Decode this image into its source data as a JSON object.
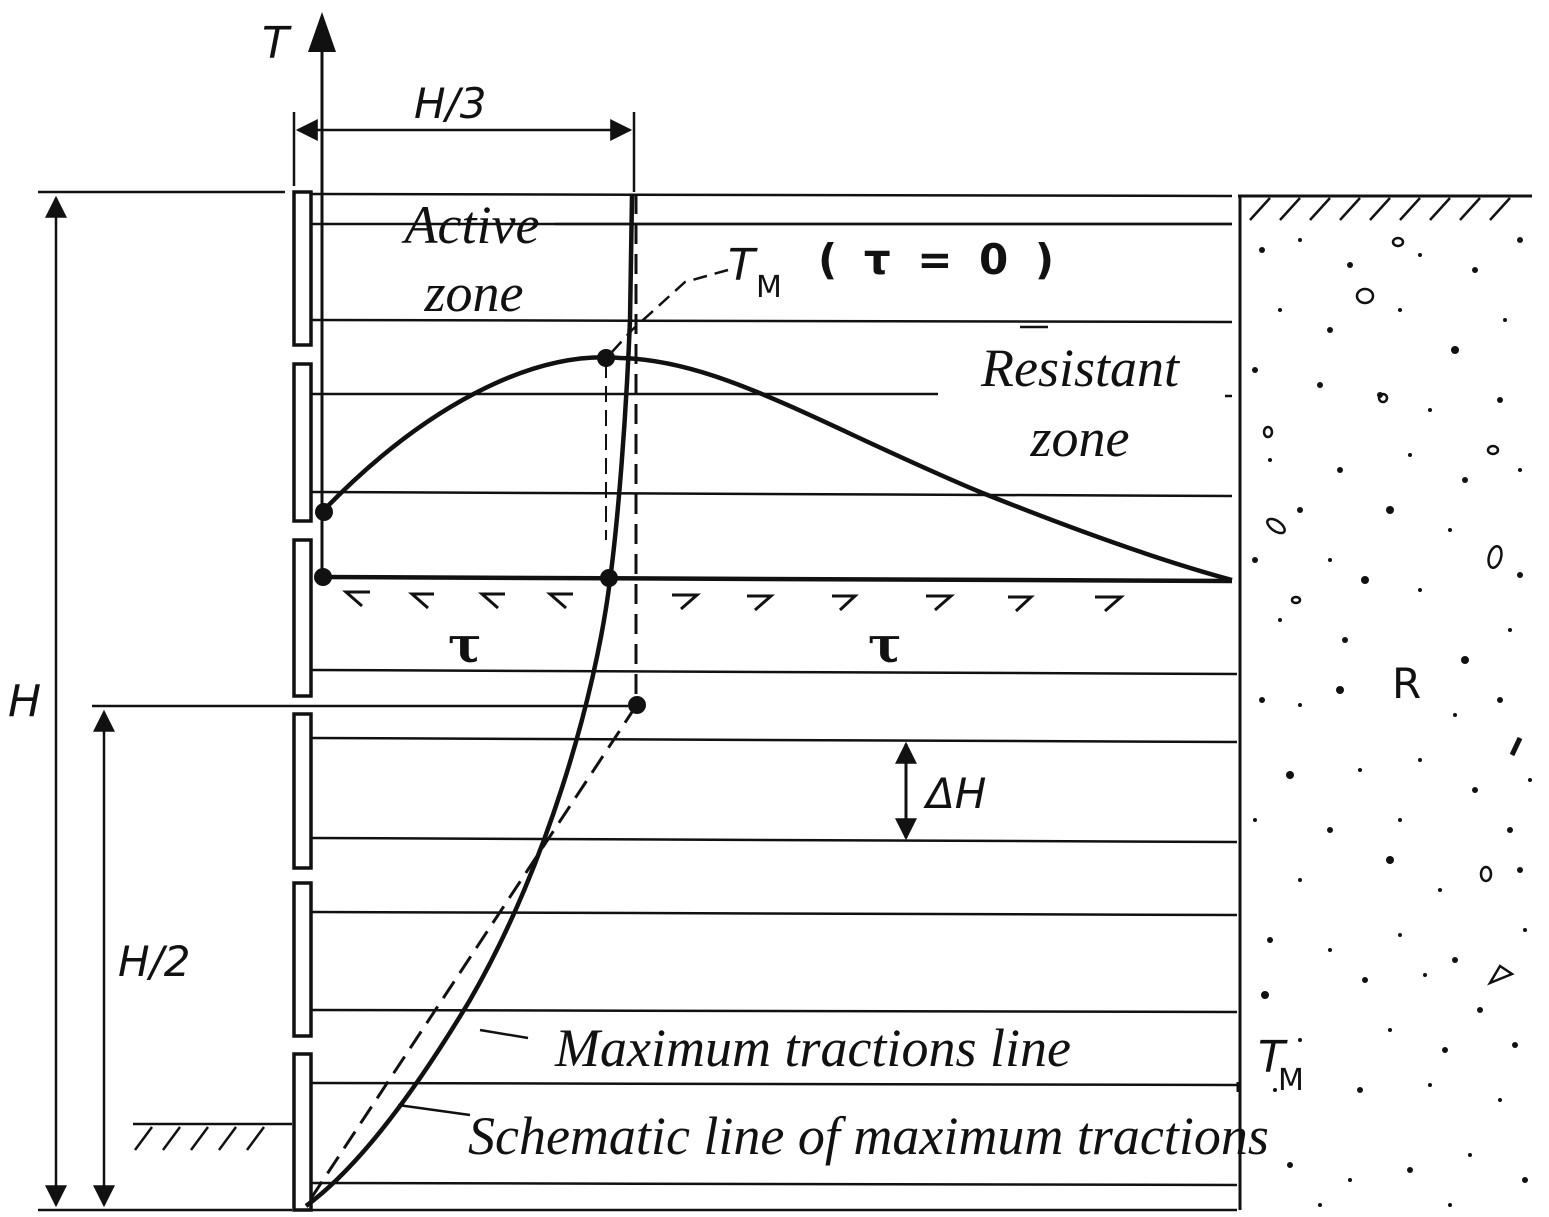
{
  "labels": {
    "axis_t": "T",
    "h_third": "H/3",
    "h": "H",
    "h_half": "H/2",
    "delta_h": "ΔH",
    "active_zone_line1": "Active",
    "active_zone_line2": "zone",
    "resistant_zone_line1": "Resistant",
    "resistant_zone_line2": "zone",
    "tm_main": "T",
    "tm_sub": "M",
    "tm_condition": "( τ = 0 )",
    "tau_left": "τ",
    "tau_right": "τ",
    "max_tractions_line": "Maximum tractions line",
    "schematic_line": "Schematic line of maximum tractions",
    "tm_bottom_main": "T",
    "tm_bottom_sub": "M",
    "rock": "R"
  }
}
